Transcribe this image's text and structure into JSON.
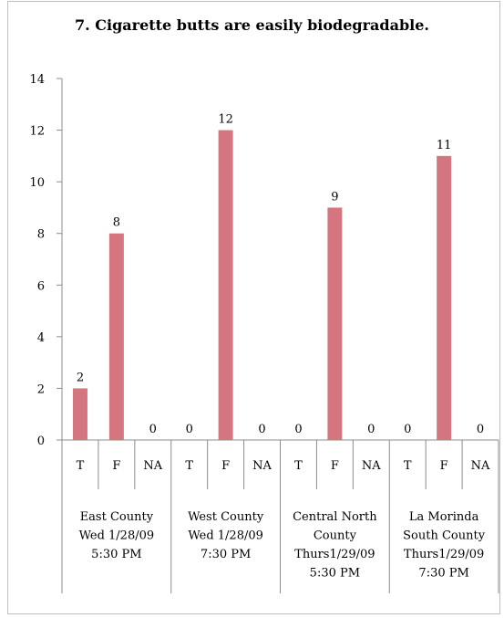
{
  "chart_data": {
    "type": "bar",
    "title": "7. Cigarette butts are easily biodegradable.",
    "xlabel": "",
    "ylabel": "",
    "ylim": [
      0,
      14
    ],
    "yticks": [
      "0",
      "2",
      "4",
      "6",
      "8",
      "10",
      "12",
      "14"
    ],
    "grid": false,
    "bar_color": "#d4757f",
    "groups": [
      {
        "lines": [
          "East County",
          "Wed 1/28/09",
          "5:30 PM"
        ],
        "categories": [
          "T",
          "F",
          "NA"
        ],
        "values": [
          2,
          8,
          0
        ]
      },
      {
        "lines": [
          "West County",
          "Wed 1/28/09",
          "7:30 PM"
        ],
        "categories": [
          "T",
          "F",
          "NA"
        ],
        "values": [
          0,
          12,
          0
        ]
      },
      {
        "lines": [
          "Central North",
          "County",
          "Thurs1/29/09",
          "5:30 PM"
        ],
        "categories": [
          "T",
          "F",
          "NA"
        ],
        "values": [
          0,
          9,
          0
        ]
      },
      {
        "lines": [
          "La Morinda",
          "South County",
          "Thurs1/29/09",
          "7:30 PM"
        ],
        "categories": [
          "T",
          "F",
          "NA"
        ],
        "values": [
          0,
          11,
          0
        ]
      }
    ]
  }
}
